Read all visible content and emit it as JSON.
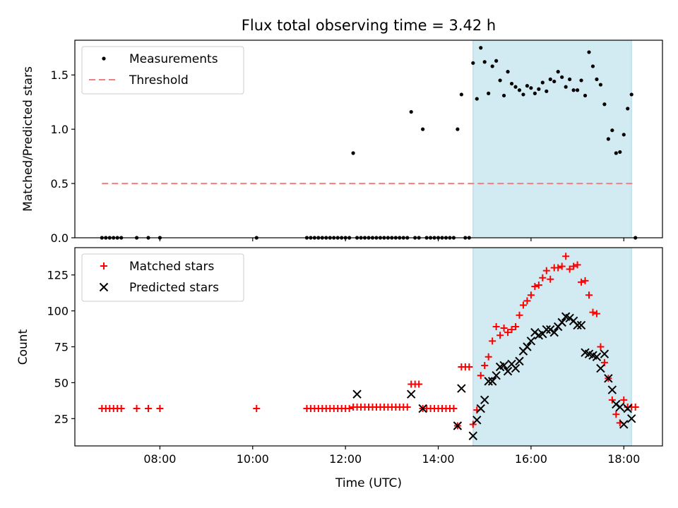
{
  "chart_data": [
    {
      "type": "scatter",
      "title": "Flux total observing time = 3.42 h",
      "ylabel": "Matched/Predicted stars",
      "xlabel": "",
      "xlim": [
        "06:10",
        "18:50"
      ],
      "ylim": [
        0,
        1.82
      ],
      "xticks": [
        "08:00",
        "10:00",
        "12:00",
        "14:00",
        "16:00",
        "18:00"
      ],
      "yticks": [
        0.0,
        0.5,
        1.0,
        1.5
      ],
      "ytick_labels": [
        "0.0",
        "0.5",
        "1.0",
        "1.5"
      ],
      "grid": false,
      "legend": "upper-left",
      "shaded_span": {
        "x": [
          "14:45",
          "18:10"
        ],
        "color": "#add8e6"
      },
      "threshold": {
        "name": "Threshold",
        "value": 0.5,
        "x": [
          "06:45",
          "18:15"
        ],
        "color": "#f08080",
        "style": "dashed"
      },
      "series": [
        {
          "name": "Measurements",
          "marker": "dot",
          "color": "#000000",
          "x": [
            "06:45",
            "06:50",
            "06:55",
            "07:00",
            "07:05",
            "07:10",
            "07:30",
            "07:45",
            "08:00",
            "10:05",
            "11:10",
            "11:15",
            "11:20",
            "11:25",
            "11:30",
            "11:35",
            "11:40",
            "11:45",
            "11:50",
            "11:55",
            "12:00",
            "12:05",
            "12:10",
            "12:15",
            "12:20",
            "12:25",
            "12:30",
            "12:35",
            "12:40",
            "12:45",
            "12:50",
            "12:55",
            "13:00",
            "13:05",
            "13:10",
            "13:15",
            "13:20",
            "13:25",
            "13:30",
            "13:35",
            "13:40",
            "13:45",
            "13:50",
            "13:55",
            "14:00",
            "14:05",
            "14:10",
            "14:15",
            "14:20",
            "14:25",
            "14:30",
            "14:35",
            "14:40",
            "14:45",
            "14:50",
            "14:55",
            "15:00",
            "15:05",
            "15:10",
            "15:15",
            "15:20",
            "15:25",
            "15:30",
            "15:35",
            "15:40",
            "15:45",
            "15:50",
            "15:55",
            "16:00",
            "16:05",
            "16:10",
            "16:15",
            "16:20",
            "16:25",
            "16:30",
            "16:35",
            "16:40",
            "16:45",
            "16:50",
            "16:55",
            "17:00",
            "17:05",
            "17:10",
            "17:15",
            "17:20",
            "17:25",
            "17:30",
            "17:35",
            "17:40",
            "17:45",
            "17:50",
            "17:55",
            "18:00",
            "18:05",
            "18:10",
            "18:15"
          ],
          "y": [
            0,
            0,
            0,
            0,
            0,
            0,
            0,
            0,
            0,
            0,
            0,
            0,
            0,
            0,
            0,
            0,
            0,
            0,
            0,
            0,
            0,
            0,
            0.78,
            0,
            0,
            0,
            0,
            0,
            0,
            0,
            0,
            0,
            0,
            0,
            0,
            0,
            0,
            1.16,
            0,
            0,
            1.0,
            0,
            0,
            0,
            0,
            0,
            0,
            0,
            0,
            1.0,
            1.32,
            0,
            0,
            1.61,
            1.28,
            1.75,
            1.62,
            1.33,
            1.58,
            1.63,
            1.45,
            1.31,
            1.53,
            1.42,
            1.39,
            1.36,
            1.32,
            1.4,
            1.38,
            1.33,
            1.37,
            1.43,
            1.35,
            1.46,
            1.44,
            1.53,
            1.48,
            1.39,
            1.46,
            1.36,
            1.36,
            1.45,
            1.31,
            1.71,
            1.58,
            1.46,
            1.41,
            1.23,
            0.91,
            0.99,
            0.78,
            0.79,
            0.95,
            1.19,
            1.32,
            0
          ]
        }
      ]
    },
    {
      "type": "scatter",
      "title": "",
      "ylabel": "Count",
      "xlabel": "Time (UTC)",
      "xlim": [
        "06:10",
        "18:50"
      ],
      "ylim": [
        6,
        144
      ],
      "xticks": [
        "08:00",
        "10:00",
        "12:00",
        "14:00",
        "16:00",
        "18:00"
      ],
      "yticks": [
        25,
        50,
        75,
        100,
        125
      ],
      "ytick_labels": [
        "25",
        "50",
        "75",
        "100",
        "125"
      ],
      "grid": false,
      "legend": "upper-left",
      "shaded_span": {
        "x": [
          "14:45",
          "18:10"
        ],
        "color": "#add8e6"
      },
      "series": [
        {
          "name": "Matched stars",
          "marker": "plus",
          "color": "#ff0000",
          "x": [
            "06:45",
            "06:50",
            "06:55",
            "07:00",
            "07:05",
            "07:10",
            "07:30",
            "07:45",
            "08:00",
            "10:05",
            "11:10",
            "11:15",
            "11:20",
            "11:25",
            "11:30",
            "11:35",
            "11:40",
            "11:45",
            "11:50",
            "11:55",
            "12:00",
            "12:05",
            "12:10",
            "12:15",
            "12:20",
            "12:25",
            "12:30",
            "12:35",
            "12:40",
            "12:45",
            "12:50",
            "12:55",
            "13:00",
            "13:05",
            "13:10",
            "13:15",
            "13:20",
            "13:25",
            "13:30",
            "13:35",
            "13:40",
            "13:45",
            "13:50",
            "13:55",
            "14:00",
            "14:05",
            "14:10",
            "14:15",
            "14:20",
            "14:25",
            "14:30",
            "14:35",
            "14:40",
            "14:45",
            "14:50",
            "14:55",
            "15:00",
            "15:05",
            "15:10",
            "15:15",
            "15:20",
            "15:25",
            "15:30",
            "15:35",
            "15:40",
            "15:45",
            "15:50",
            "15:55",
            "16:00",
            "16:05",
            "16:10",
            "16:15",
            "16:20",
            "16:25",
            "16:30",
            "16:35",
            "16:40",
            "16:45",
            "16:50",
            "16:55",
            "17:00",
            "17:05",
            "17:10",
            "17:15",
            "17:20",
            "17:25",
            "17:30",
            "17:35",
            "17:40",
            "17:45",
            "17:50",
            "17:55",
            "18:00",
            "18:05",
            "18:10",
            "18:15"
          ],
          "y": [
            32,
            32,
            32,
            32,
            32,
            32,
            32,
            32,
            32,
            32,
            32,
            32,
            32,
            32,
            32,
            32,
            32,
            32,
            32,
            32,
            32,
            32,
            33,
            33,
            33,
            33,
            33,
            33,
            33,
            33,
            33,
            33,
            33,
            33,
            33,
            33,
            33,
            49,
            49,
            49,
            32,
            32,
            32,
            32,
            32,
            32,
            32,
            32,
            32,
            20,
            61,
            61,
            61,
            21,
            31,
            55,
            62,
            68,
            79,
            89,
            83,
            88,
            85,
            87,
            89,
            97,
            104,
            107,
            111,
            117,
            118,
            123,
            128,
            122,
            130,
            130,
            131,
            138,
            129,
            131,
            132,
            120,
            121,
            111,
            99,
            98,
            75,
            64,
            53,
            38,
            28,
            22,
            38,
            33,
            33,
            33
          ]
        },
        {
          "name": "Predicted stars",
          "marker": "x",
          "color": "#000000",
          "x": [
            "12:15",
            "13:25",
            "13:40",
            "14:25",
            "14:30",
            "14:45",
            "14:50",
            "14:55",
            "15:00",
            "15:05",
            "15:10",
            "15:15",
            "15:20",
            "15:25",
            "15:30",
            "15:35",
            "15:40",
            "15:45",
            "15:50",
            "15:55",
            "16:00",
            "16:05",
            "16:10",
            "16:15",
            "16:20",
            "16:25",
            "16:30",
            "16:35",
            "16:40",
            "16:45",
            "16:50",
            "16:55",
            "17:00",
            "17:05",
            "17:10",
            "17:15",
            "17:20",
            "17:25",
            "17:30",
            "17:35",
            "17:40",
            "17:45",
            "17:50",
            "17:55",
            "18:00",
            "18:05",
            "18:10"
          ],
          "y": [
            42,
            42,
            32,
            20,
            46,
            13,
            24,
            32,
            38,
            51,
            51,
            55,
            61,
            62,
            58,
            63,
            60,
            65,
            72,
            75,
            79,
            85,
            83,
            84,
            87,
            87,
            85,
            89,
            92,
            96,
            95,
            93,
            90,
            90,
            71,
            70,
            69,
            68,
            60,
            70,
            53,
            45,
            35,
            33,
            21,
            32,
            25
          ]
        }
      ]
    }
  ]
}
